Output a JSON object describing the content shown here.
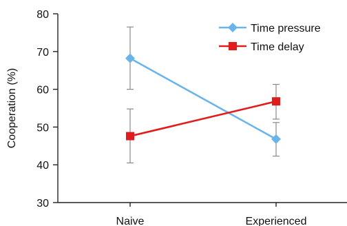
{
  "chart_data": {
    "type": "line",
    "title": "",
    "xlabel": "",
    "ylabel": "Cooperation (%)",
    "categories": [
      "Naive",
      "Experienced"
    ],
    "ylim": [
      30,
      80
    ],
    "yticks": [
      30,
      40,
      50,
      60,
      70,
      80
    ],
    "grid": false,
    "legend_position": "top-right",
    "series": [
      {
        "name": "Time pressure",
        "color": "#6ab4ea",
        "marker": "diamond",
        "values": [
          68.2,
          46.8
        ],
        "error_low": [
          60.0,
          42.3
        ],
        "error_high": [
          76.5,
          51.2
        ]
      },
      {
        "name": "Time delay",
        "color": "#e01c1c",
        "marker": "square",
        "values": [
          47.6,
          56.8
        ],
        "error_low": [
          40.5,
          52.1
        ],
        "error_high": [
          54.8,
          61.3
        ]
      }
    ]
  }
}
